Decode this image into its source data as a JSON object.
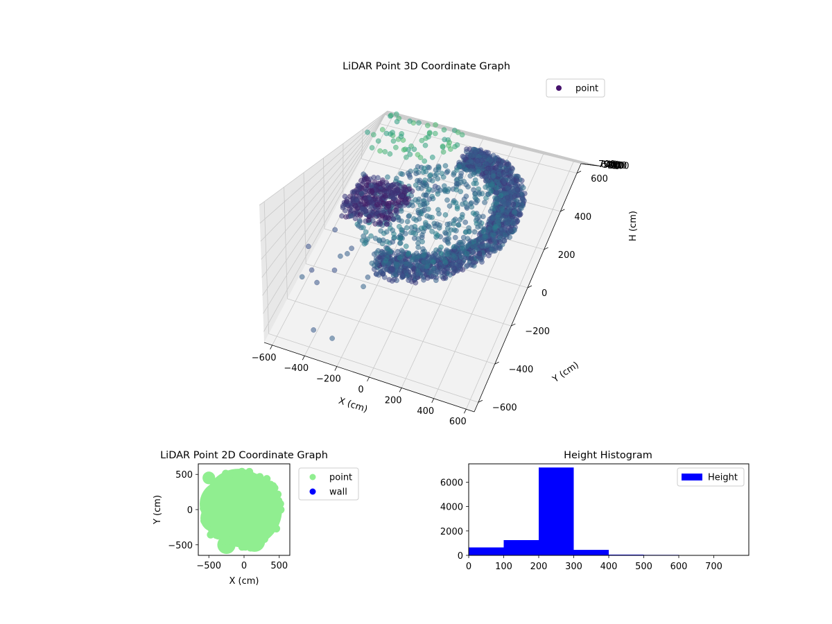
{
  "chart_data": [
    {
      "type": "scatter3d",
      "title": "LiDAR Point 3D Coordinate Graph",
      "xlabel": "X (cm)",
      "ylabel": "Y (cm)",
      "zlabel": "H (cm)",
      "xlim": [
        -650,
        650
      ],
      "ylim": [
        -650,
        650
      ],
      "zlim": [
        0,
        760
      ],
      "z_inverted": true,
      "x_ticks": [
        "−600",
        "−400",
        "−200",
        "0",
        "200",
        "400",
        "600"
      ],
      "y_ticks": [
        "−600",
        "−400",
        "−200",
        "0",
        "200",
        "400",
        "600"
      ],
      "z_ticks": [
        "0",
        "100",
        "200",
        "300",
        "400",
        "500",
        "600",
        "700"
      ],
      "grid": true,
      "legend": [
        "point"
      ],
      "legend_position": "upper-right",
      "colormap": "viridis",
      "legend_color": "#46126c",
      "series": [
        {
          "name": "point",
          "description_points": [
            {
              "x": -550,
              "y": 400,
              "z": 150
            },
            {
              "x": -400,
              "y": 550,
              "z": 60
            },
            {
              "x": -300,
              "y": 300,
              "z": 300
            },
            {
              "x": -200,
              "y": 200,
              "z": 500
            },
            {
              "x": 0,
              "y": 500,
              "z": 250
            },
            {
              "x": 200,
              "y": 450,
              "z": 230
            },
            {
              "x": 400,
              "y": 100,
              "z": 240
            },
            {
              "x": 300,
              "y": -300,
              "z": 280
            },
            {
              "x": 0,
              "y": -450,
              "z": 260
            },
            {
              "x": -300,
              "y": -200,
              "z": 300
            },
            {
              "x": -450,
              "y": 0,
              "z": 350
            },
            {
              "x": 100,
              "y": 0,
              "z": 300
            },
            {
              "x": -600,
              "y": -300,
              "z": 700
            }
          ]
        }
      ]
    },
    {
      "type": "scatter",
      "title": "LiDAR Point 2D Coordinate Graph",
      "xlabel": "X (cm)",
      "ylabel": "Y (cm)",
      "xlim": [
        -650,
        650
      ],
      "ylim": [
        -650,
        650
      ],
      "x_ticks": [
        "−500",
        "0",
        "500"
      ],
      "y_ticks": [
        "500",
        "0",
        "−500"
      ],
      "legend": [
        "point",
        "wall"
      ],
      "legend_position": "right-outside",
      "colors": {
        "point": "#90ee90",
        "wall": "#0000ff"
      },
      "series": [
        {
          "name": "point",
          "shape": "disc-filled",
          "center": [
            0,
            0
          ],
          "radius": 550
        },
        {
          "name": "wall",
          "values": []
        }
      ]
    },
    {
      "type": "bar",
      "title": "Height Histogram",
      "legend": [
        "Height"
      ],
      "legend_position": "upper-right",
      "color": "#0000ff",
      "xlim": [
        0,
        800
      ],
      "ylim": [
        0,
        7500
      ],
      "x_ticks": [
        "0",
        "100",
        "200",
        "300",
        "400",
        "500",
        "600",
        "700"
      ],
      "y_ticks": [
        "0",
        "2000",
        "4000",
        "6000"
      ],
      "bins": [
        {
          "from": 0,
          "to": 100,
          "count": 650
        },
        {
          "from": 100,
          "to": 200,
          "count": 1250
        },
        {
          "from": 200,
          "to": 300,
          "count": 7200
        },
        {
          "from": 300,
          "to": 400,
          "count": 450
        },
        {
          "from": 400,
          "to": 500,
          "count": 60
        },
        {
          "from": 500,
          "to": 600,
          "count": 40
        },
        {
          "from": 600,
          "to": 700,
          "count": 10
        },
        {
          "from": 700,
          "to": 800,
          "count": 5
        }
      ]
    }
  ]
}
